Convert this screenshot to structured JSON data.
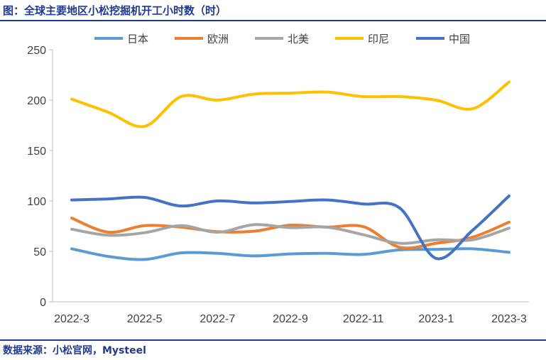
{
  "title": "图：全球主要地区小松挖掘机开工小时数（时）",
  "source": "数据来源：小松官网，Mysteel",
  "chart_data": {
    "type": "line",
    "title": "",
    "xlabel": "",
    "ylabel": "",
    "ylim": [
      0,
      250
    ],
    "yticks": [
      0,
      50,
      100,
      150,
      200,
      250
    ],
    "x": [
      "2022-3",
      "2022-4",
      "2022-5",
      "2022-6",
      "2022-7",
      "2022-8",
      "2022-9",
      "2022-10",
      "2022-11",
      "2022-12",
      "2023-1",
      "2023-2",
      "2023-3"
    ],
    "xtick_labels": [
      "2022-3",
      "2022-5",
      "2022-7",
      "2022-9",
      "2022-11",
      "2023-1",
      "2023-3"
    ],
    "grid": false,
    "legend": "top",
    "series": [
      {
        "name": "日本",
        "color": "#5b9bd5",
        "values": [
          52.5,
          45,
          42,
          48.5,
          48,
          45.5,
          47.5,
          48,
          47,
          51.5,
          52,
          52.5,
          49
        ]
      },
      {
        "name": "欧洲",
        "color": "#ed7d31",
        "values": [
          83,
          69,
          75.5,
          74,
          69.5,
          70,
          76,
          74,
          74.5,
          54,
          58,
          64,
          79
        ]
      },
      {
        "name": "北美",
        "color": "#a5a5a5",
        "values": [
          72,
          66,
          68.5,
          75.5,
          69,
          76.5,
          73.5,
          74,
          66.5,
          58,
          61.5,
          61.5,
          73
        ]
      },
      {
        "name": "印尼",
        "color": "#ffc000",
        "values": [
          201,
          188,
          174,
          203.5,
          200,
          206,
          207,
          208,
          203.5,
          203.5,
          200,
          191.5,
          218
        ]
      },
      {
        "name": "中国",
        "color": "#4472c4",
        "values": [
          101,
          102,
          103.5,
          95,
          100,
          98,
          99.5,
          101,
          97,
          93,
          43,
          71,
          105
        ]
      }
    ]
  }
}
